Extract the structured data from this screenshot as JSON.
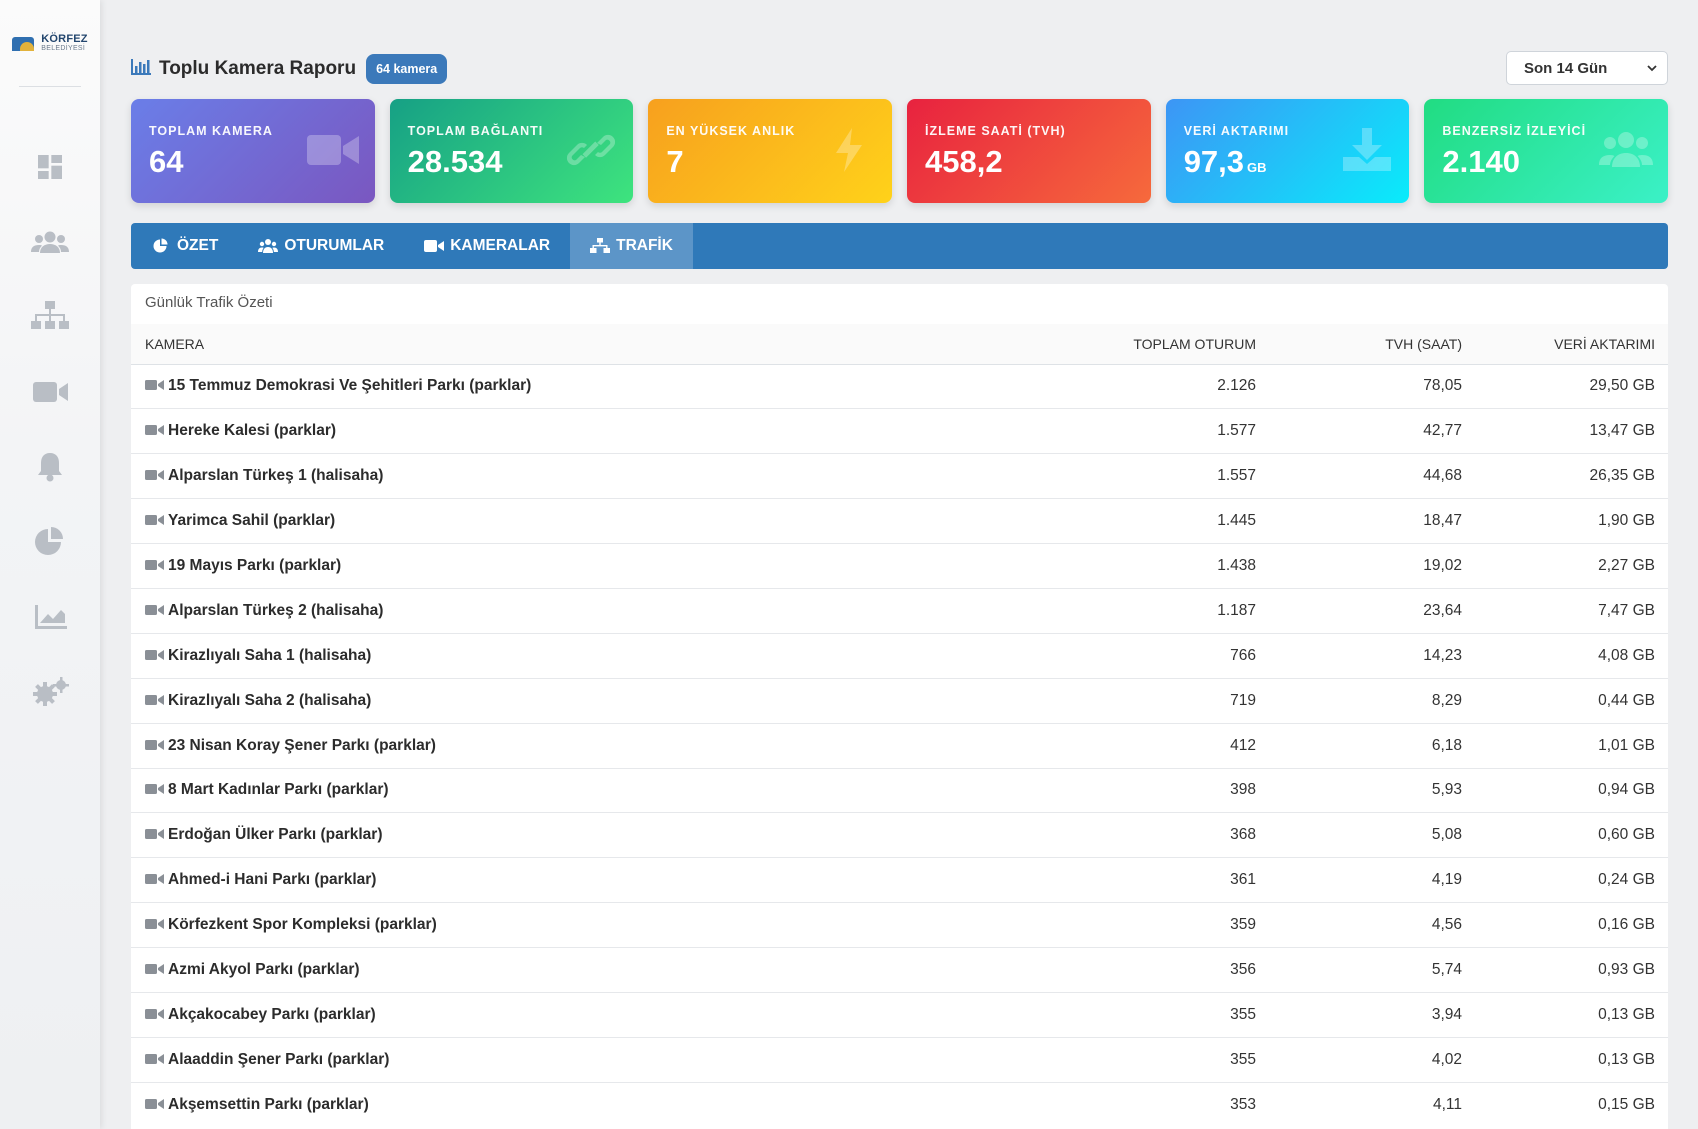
{
  "logo": {
    "line1": "KÖRFEZ",
    "line2": "BELEDİYESİ"
  },
  "sidebar": {
    "items": [
      {
        "name": "dashboard",
        "icon": "dashboard-icon"
      },
      {
        "name": "users",
        "icon": "users-icon"
      },
      {
        "name": "network",
        "icon": "sitemap-icon"
      },
      {
        "name": "cameras",
        "icon": "video-camera-icon"
      },
      {
        "name": "notifications",
        "icon": "bell-icon"
      },
      {
        "name": "reports",
        "icon": "pie-chart-icon"
      },
      {
        "name": "analytics",
        "icon": "area-chart-icon"
      },
      {
        "name": "settings",
        "icon": "gears-icon"
      }
    ]
  },
  "header": {
    "title": "Toplu Kamera Raporu",
    "badge": "64 kamera",
    "period": "Son 14 Gün"
  },
  "cards": [
    {
      "label": "TOPLAM KAMERA",
      "value": "64",
      "unit": "",
      "icon": "video-camera-icon",
      "color": "#7061d4"
    },
    {
      "label": "TOPLAM BAĞLANTI",
      "value": "28.534",
      "unit": "",
      "icon": "link-icon",
      "color": "#23b885"
    },
    {
      "label": "EN YÜKSEK ANLIK",
      "value": "7",
      "unit": "",
      "icon": "lightning-icon",
      "color": "#fbb81c"
    },
    {
      "label": "İZLEME SAATİ (TVH)",
      "value": "458,2",
      "unit": "",
      "icon": "clock-icon",
      "color": "#ee3e3d"
    },
    {
      "label": "VERİ AKTARIMI",
      "value": "97,3",
      "unit": "GB",
      "icon": "download-icon",
      "color": "#22c2f8"
    },
    {
      "label": "BENZERSİZ İZLEYİCİ",
      "value": "2.140",
      "unit": "",
      "icon": "users-icon",
      "color": "#2ee6a4"
    }
  ],
  "tabs": [
    {
      "label": "ÖZET",
      "icon": "pie-chart-icon",
      "active": false
    },
    {
      "label": "OTURUMLAR",
      "icon": "users-icon",
      "active": false
    },
    {
      "label": "KAMERALAR",
      "icon": "video-camera-icon",
      "active": false
    },
    {
      "label": "TRAFİK",
      "icon": "sitemap-icon",
      "active": true
    }
  ],
  "table": {
    "title": "Günlük Trafik Özeti",
    "headers": [
      "KAMERA",
      "TOPLAM OTURUM",
      "TVH (SAAT)",
      "VERİ AKTARIMI"
    ],
    "rows": [
      {
        "camera": "15 Temmuz Demokrasi Ve Şehitleri Parkı (parklar)",
        "sessions": "2.126",
        "tvh": "78,05",
        "data": "29,50 GB"
      },
      {
        "camera": "Hereke Kalesi (parklar)",
        "sessions": "1.577",
        "tvh": "42,77",
        "data": "13,47 GB"
      },
      {
        "camera": "Alparslan Türkeş 1 (halisaha)",
        "sessions": "1.557",
        "tvh": "44,68",
        "data": "26,35 GB"
      },
      {
        "camera": "Yarimca Sahil (parklar)",
        "sessions": "1.445",
        "tvh": "18,47",
        "data": "1,90 GB"
      },
      {
        "camera": "19 Mayıs Parkı (parklar)",
        "sessions": "1.438",
        "tvh": "19,02",
        "data": "2,27 GB"
      },
      {
        "camera": "Alparslan Türkeş 2 (halisaha)",
        "sessions": "1.187",
        "tvh": "23,64",
        "data": "7,47 GB"
      },
      {
        "camera": "Kirazlıyalı Saha 1 (halisaha)",
        "sessions": "766",
        "tvh": "14,23",
        "data": "4,08 GB"
      },
      {
        "camera": "Kirazlıyalı Saha 2 (halisaha)",
        "sessions": "719",
        "tvh": "8,29",
        "data": "0,44 GB"
      },
      {
        "camera": "23 Nisan Koray Şener Parkı (parklar)",
        "sessions": "412",
        "tvh": "6,18",
        "data": "1,01 GB"
      },
      {
        "camera": "8 Mart Kadınlar Parkı (parklar)",
        "sessions": "398",
        "tvh": "5,93",
        "data": "0,94 GB"
      },
      {
        "camera": "Erdoğan Ülker Parkı (parklar)",
        "sessions": "368",
        "tvh": "5,08",
        "data": "0,60 GB"
      },
      {
        "camera": "Ahmed-i Hani Parkı (parklar)",
        "sessions": "361",
        "tvh": "4,19",
        "data": "0,24 GB"
      },
      {
        "camera": "Körfezkent Spor Kompleksi (parklar)",
        "sessions": "359",
        "tvh": "4,56",
        "data": "0,16 GB"
      },
      {
        "camera": "Azmi Akyol Parkı (parklar)",
        "sessions": "356",
        "tvh": "5,74",
        "data": "0,93 GB"
      },
      {
        "camera": "Akçakocabey Parkı (parklar)",
        "sessions": "355",
        "tvh": "3,94",
        "data": "0,13 GB"
      },
      {
        "camera": "Alaaddin Şener Parkı (parklar)",
        "sessions": "355",
        "tvh": "4,02",
        "data": "0,13 GB"
      },
      {
        "camera": "Akşemsettin Parkı (parklar)",
        "sessions": "353",
        "tvh": "4,11",
        "data": "0,15 GB"
      }
    ]
  }
}
